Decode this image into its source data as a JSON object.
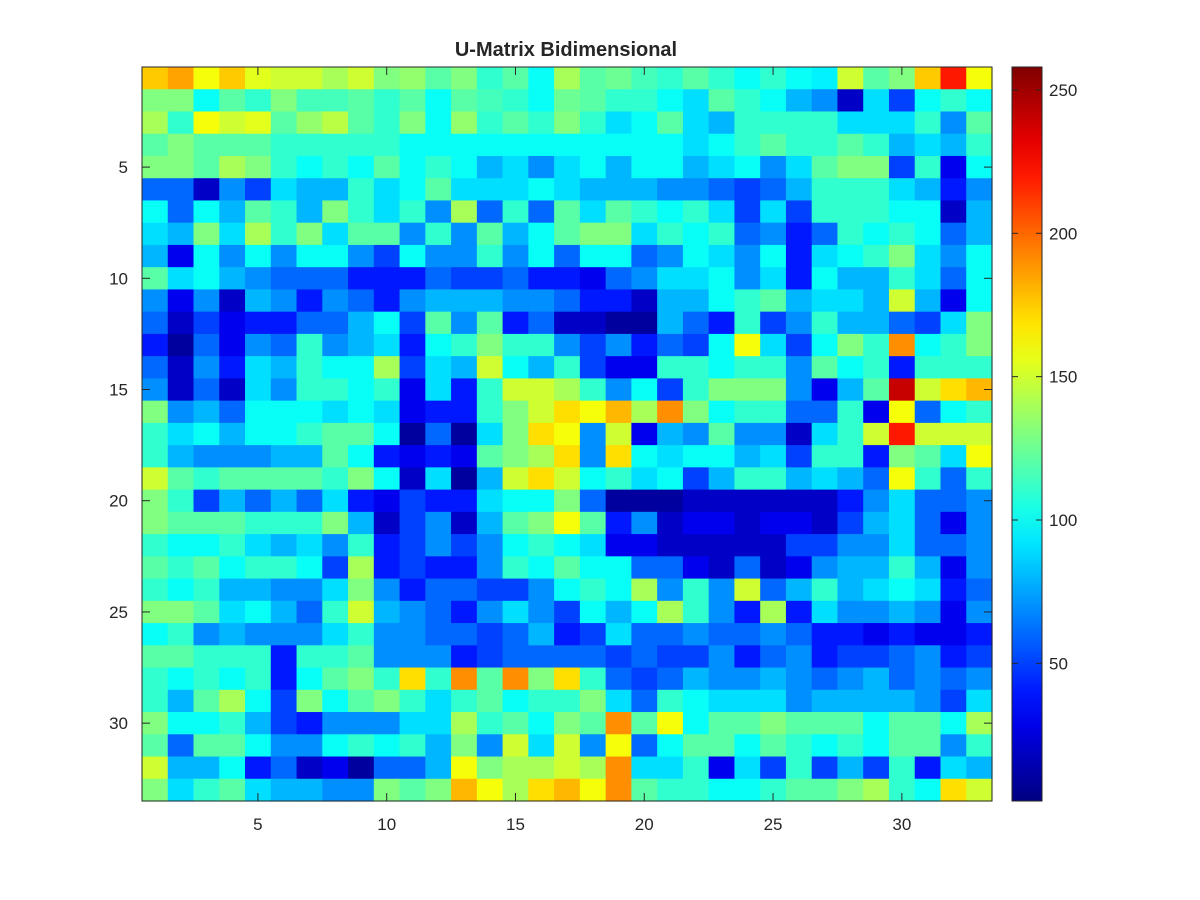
{
  "chart_data": {
    "type": "heatmap",
    "title": "U-Matrix Bidimensional",
    "xlabel": "",
    "ylabel": "",
    "rows": 33,
    "cols": 33,
    "xlim": [
      0.5,
      33.5
    ],
    "ylim": [
      0.5,
      33.5
    ],
    "y_reversed": true,
    "xticks": [
      5,
      10,
      15,
      20,
      25,
      30
    ],
    "yticks": [
      5,
      10,
      15,
      20,
      25,
      30
    ],
    "colormap": "jet",
    "clim": [
      2,
      258
    ],
    "colorbar_ticks": [
      50,
      100,
      150,
      200,
      250
    ],
    "grid": false,
    "colorbar": "right",
    "values": [
      [
        175,
        185,
        160,
        175,
        155,
        150,
        150,
        140,
        150,
        130,
        135,
        120,
        130,
        110,
        120,
        100,
        140,
        120,
        125,
        115,
        110,
        120,
        110,
        100,
        110,
        100,
        95,
        150,
        120,
        130,
        175,
        220,
        160
      ],
      [
        130,
        130,
        100,
        120,
        110,
        130,
        115,
        115,
        120,
        110,
        120,
        100,
        120,
        115,
        110,
        100,
        125,
        120,
        110,
        110,
        100,
        90,
        120,
        110,
        100,
        80,
        70,
        20,
        90,
        50,
        100,
        110,
        100
      ],
      [
        140,
        110,
        160,
        150,
        155,
        120,
        135,
        145,
        120,
        110,
        130,
        100,
        135,
        110,
        120,
        110,
        130,
        110,
        90,
        100,
        120,
        90,
        80,
        110,
        110,
        110,
        110,
        90,
        90,
        90,
        110,
        70,
        120
      ],
      [
        120,
        130,
        120,
        120,
        120,
        110,
        110,
        110,
        110,
        110,
        100,
        100,
        100,
        100,
        100,
        100,
        100,
        100,
        100,
        100,
        100,
        90,
        100,
        110,
        120,
        110,
        110,
        120,
        110,
        80,
        90,
        80,
        110
      ],
      [
        130,
        130,
        120,
        140,
        130,
        110,
        100,
        110,
        100,
        120,
        100,
        110,
        100,
        80,
        90,
        70,
        90,
        100,
        80,
        100,
        100,
        80,
        90,
        100,
        70,
        90,
        120,
        130,
        130,
        50,
        110,
        30,
        100
      ],
      [
        60,
        60,
        20,
        70,
        50,
        90,
        80,
        80,
        110,
        90,
        100,
        120,
        90,
        90,
        90,
        100,
        90,
        80,
        80,
        80,
        70,
        70,
        60,
        50,
        60,
        80,
        110,
        110,
        110,
        90,
        80,
        40,
        70
      ],
      [
        100,
        60,
        100,
        80,
        120,
        110,
        80,
        130,
        110,
        90,
        110,
        70,
        140,
        60,
        110,
        60,
        120,
        90,
        120,
        110,
        100,
        110,
        90,
        50,
        90,
        50,
        110,
        110,
        110,
        100,
        100,
        20,
        80
      ],
      [
        90,
        80,
        130,
        90,
        140,
        110,
        130,
        90,
        120,
        120,
        70,
        110,
        70,
        120,
        80,
        100,
        120,
        130,
        130,
        90,
        110,
        100,
        110,
        60,
        70,
        40,
        60,
        110,
        100,
        110,
        100,
        60,
        80
      ],
      [
        80,
        30,
        100,
        70,
        100,
        70,
        100,
        100,
        70,
        50,
        100,
        70,
        70,
        110,
        70,
        100,
        60,
        100,
        100,
        60,
        70,
        100,
        90,
        70,
        100,
        40,
        90,
        100,
        110,
        130,
        90,
        70,
        100
      ],
      [
        120,
        90,
        100,
        80,
        70,
        60,
        60,
        60,
        40,
        40,
        40,
        60,
        50,
        50,
        60,
        40,
        40,
        30,
        60,
        70,
        90,
        90,
        100,
        70,
        90,
        40,
        100,
        80,
        80,
        110,
        90,
        60,
        100
      ],
      [
        70,
        30,
        70,
        20,
        80,
        70,
        40,
        70,
        60,
        40,
        70,
        80,
        80,
        80,
        70,
        70,
        60,
        40,
        40,
        20,
        80,
        80,
        100,
        110,
        120,
        80,
        90,
        90,
        80,
        150,
        80,
        30,
        100
      ],
      [
        60,
        20,
        50,
        30,
        40,
        40,
        60,
        60,
        80,
        100,
        50,
        120,
        70,
        120,
        40,
        60,
        20,
        20,
        10,
        10,
        80,
        60,
        40,
        110,
        50,
        70,
        110,
        80,
        80,
        60,
        50,
        90,
        130
      ],
      [
        40,
        10,
        60,
        30,
        70,
        60,
        110,
        70,
        80,
        90,
        40,
        100,
        110,
        130,
        110,
        110,
        70,
        50,
        70,
        40,
        60,
        50,
        100,
        160,
        90,
        50,
        100,
        130,
        110,
        190,
        100,
        110,
        130
      ],
      [
        60,
        20,
        70,
        40,
        90,
        80,
        110,
        100,
        100,
        140,
        50,
        90,
        80,
        150,
        100,
        80,
        110,
        50,
        30,
        30,
        110,
        110,
        100,
        110,
        110,
        70,
        120,
        100,
        110,
        40,
        110,
        110,
        110
      ],
      [
        70,
        20,
        60,
        20,
        90,
        70,
        110,
        110,
        100,
        110,
        30,
        90,
        40,
        110,
        150,
        150,
        140,
        110,
        70,
        100,
        50,
        110,
        130,
        130,
        130,
        70,
        30,
        80,
        120,
        240,
        150,
        170,
        180
      ],
      [
        130,
        70,
        80,
        60,
        100,
        100,
        100,
        90,
        100,
        90,
        30,
        40,
        40,
        110,
        130,
        150,
        170,
        160,
        180,
        140,
        190,
        130,
        100,
        110,
        110,
        60,
        60,
        110,
        30,
        160,
        60,
        100,
        110
      ],
      [
        110,
        90,
        100,
        80,
        100,
        100,
        110,
        120,
        120,
        100,
        10,
        60,
        10,
        90,
        130,
        170,
        160,
        70,
        150,
        30,
        80,
        70,
        120,
        70,
        70,
        20,
        90,
        110,
        150,
        220,
        150,
        150,
        150
      ],
      [
        110,
        80,
        70,
        70,
        70,
        80,
        80,
        120,
        100,
        40,
        30,
        40,
        30,
        120,
        130,
        140,
        170,
        70,
        170,
        100,
        90,
        100,
        100,
        80,
        90,
        50,
        110,
        110,
        40,
        130,
        120,
        90,
        160
      ],
      [
        150,
        120,
        110,
        120,
        120,
        120,
        120,
        110,
        130,
        100,
        20,
        90,
        10,
        80,
        150,
        170,
        150,
        100,
        110,
        90,
        100,
        50,
        80,
        110,
        110,
        80,
        90,
        80,
        60,
        160,
        110,
        60,
        110
      ],
      [
        130,
        110,
        50,
        80,
        60,
        80,
        60,
        90,
        40,
        30,
        50,
        40,
        40,
        90,
        100,
        100,
        130,
        60,
        10,
        10,
        10,
        20,
        20,
        20,
        20,
        20,
        20,
        40,
        70,
        90,
        60,
        60,
        70
      ],
      [
        130,
        120,
        120,
        120,
        110,
        110,
        110,
        130,
        80,
        20,
        50,
        70,
        20,
        80,
        120,
        130,
        160,
        120,
        40,
        70,
        20,
        30,
        30,
        20,
        30,
        30,
        20,
        50,
        80,
        90,
        60,
        30,
        70
      ],
      [
        110,
        100,
        100,
        110,
        90,
        80,
        90,
        70,
        110,
        40,
        50,
        70,
        50,
        70,
        100,
        110,
        100,
        90,
        30,
        30,
        20,
        20,
        20,
        20,
        20,
        50,
        50,
        70,
        70,
        90,
        60,
        60,
        70
      ],
      [
        120,
        110,
        120,
        100,
        110,
        110,
        100,
        50,
        140,
        40,
        50,
        40,
        40,
        70,
        110,
        100,
        120,
        100,
        100,
        60,
        60,
        30,
        20,
        60,
        20,
        30,
        70,
        80,
        80,
        110,
        80,
        30,
        70
      ],
      [
        110,
        100,
        110,
        80,
        80,
        70,
        70,
        90,
        130,
        70,
        40,
        60,
        60,
        50,
        50,
        70,
        100,
        110,
        100,
        140,
        70,
        110,
        70,
        150,
        60,
        80,
        110,
        80,
        90,
        100,
        90,
        40,
        60
      ],
      [
        130,
        130,
        120,
        90,
        100,
        80,
        60,
        110,
        150,
        80,
        70,
        60,
        40,
        70,
        90,
        70,
        50,
        100,
        80,
        100,
        140,
        110,
        70,
        40,
        140,
        40,
        90,
        70,
        70,
        80,
        70,
        30,
        70
      ],
      [
        100,
        110,
        70,
        80,
        70,
        70,
        70,
        90,
        110,
        70,
        70,
        60,
        60,
        50,
        60,
        80,
        40,
        50,
        90,
        60,
        60,
        70,
        60,
        60,
        70,
        60,
        40,
        40,
        30,
        40,
        30,
        30,
        40
      ],
      [
        120,
        120,
        110,
        110,
        110,
        40,
        110,
        110,
        120,
        70,
        70,
        70,
        40,
        50,
        60,
        60,
        60,
        60,
        50,
        60,
        50,
        50,
        70,
        40,
        60,
        70,
        40,
        50,
        50,
        60,
        70,
        40,
        50
      ],
      [
        110,
        100,
        110,
        100,
        110,
        40,
        100,
        120,
        130,
        110,
        170,
        110,
        190,
        120,
        190,
        130,
        170,
        110,
        60,
        50,
        60,
        80,
        70,
        70,
        80,
        70,
        60,
        70,
        80,
        60,
        70,
        60,
        70
      ],
      [
        110,
        80,
        120,
        140,
        100,
        50,
        130,
        100,
        120,
        130,
        110,
        90,
        110,
        120,
        100,
        110,
        110,
        130,
        90,
        60,
        110,
        100,
        90,
        90,
        90,
        70,
        80,
        80,
        80,
        80,
        70,
        50,
        90
      ],
      [
        130,
        100,
        100,
        110,
        80,
        50,
        40,
        70,
        70,
        70,
        90,
        90,
        140,
        110,
        120,
        100,
        130,
        120,
        190,
        120,
        160,
        100,
        120,
        120,
        130,
        120,
        120,
        120,
        100,
        120,
        120,
        100,
        140
      ],
      [
        120,
        60,
        120,
        120,
        100,
        70,
        70,
        100,
        110,
        100,
        110,
        80,
        130,
        70,
        150,
        90,
        150,
        70,
        160,
        60,
        100,
        120,
        120,
        100,
        120,
        110,
        100,
        110,
        100,
        120,
        120,
        70,
        110
      ],
      [
        150,
        80,
        80,
        100,
        40,
        60,
        20,
        30,
        10,
        60,
        60,
        80,
        160,
        130,
        140,
        140,
        150,
        140,
        190,
        90,
        90,
        110,
        30,
        90,
        50,
        110,
        50,
        80,
        50,
        110,
        40,
        90,
        80
      ],
      [
        130,
        90,
        110,
        120,
        90,
        80,
        80,
        70,
        70,
        130,
        120,
        130,
        180,
        160,
        140,
        170,
        180,
        160,
        190,
        120,
        110,
        110,
        100,
        100,
        110,
        120,
        120,
        130,
        140,
        110,
        100,
        170,
        150
      ]
    ]
  }
}
